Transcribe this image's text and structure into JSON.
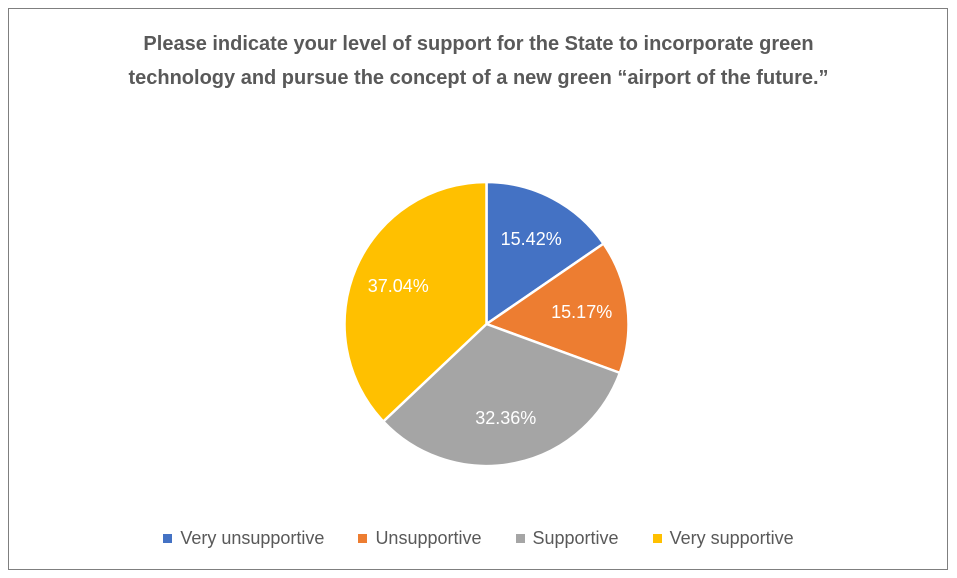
{
  "chart_data": {
    "type": "pie",
    "title": "Please indicate your level of support for the State to incorporate green technology and pursue the concept of a new green “airport of the future.”",
    "categories": [
      "Very unsupportive",
      "Unsupportive",
      "Supportive",
      "Very supportive"
    ],
    "values": [
      15.42,
      15.17,
      32.36,
      37.04
    ],
    "value_labels": [
      "15.42%",
      "15.17%",
      "32.36%",
      "37.04%"
    ],
    "colors": [
      "#4472c4",
      "#ed7d31",
      "#a5a5a5",
      "#ffc000"
    ],
    "legend": "bottom"
  }
}
